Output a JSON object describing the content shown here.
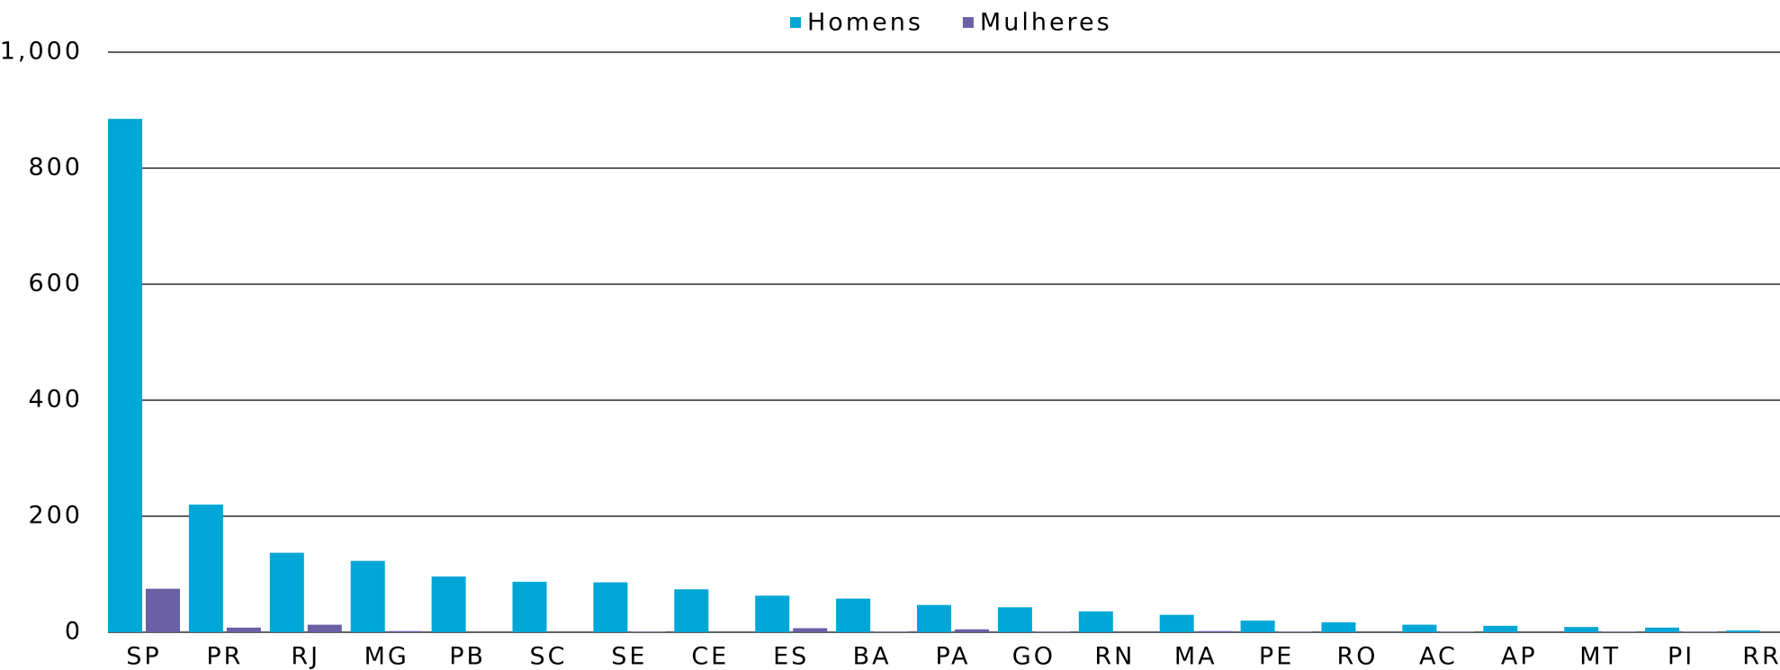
{
  "chart_data": {
    "type": "bar",
    "categories": [
      "SP",
      "PR",
      "RJ",
      "MG",
      "PB",
      "SC",
      "SE",
      "CE",
      "ES",
      "BA",
      "PA",
      "GO",
      "RN",
      "MA",
      "PE",
      "RO",
      "AC",
      "AP",
      "MT",
      "PI",
      "RR"
    ],
    "series": [
      {
        "name": "Homens",
        "color": "#00a6d6",
        "values": [
          885,
          220,
          137,
          123,
          96,
          87,
          86,
          74,
          63,
          58,
          47,
          43,
          36,
          30,
          20,
          17,
          13,
          11,
          9,
          8,
          3
        ]
      },
      {
        "name": "Mulheres",
        "color": "#6b5fa6",
        "values": [
          75,
          8,
          13,
          2,
          0,
          0,
          1,
          0,
          7,
          1,
          5,
          1,
          0,
          2,
          1,
          0,
          1,
          0,
          1,
          1,
          0
        ]
      }
    ],
    "ylim": [
      0,
      1000
    ],
    "yticks": [
      0,
      200,
      400,
      600,
      800,
      {
        "value": 1000,
        "label": "1,000"
      }
    ],
    "grid": true,
    "legend": "top"
  }
}
